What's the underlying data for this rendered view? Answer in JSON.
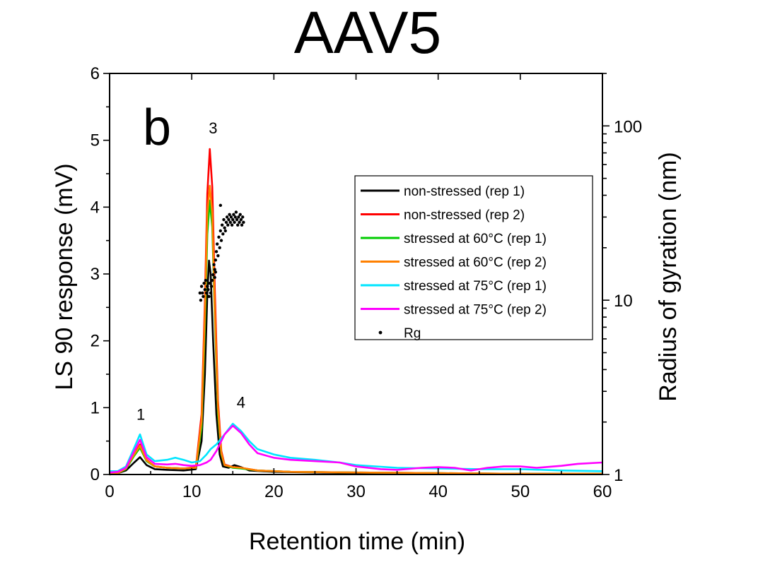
{
  "chart_data": {
    "type": "line",
    "title": "AAV5",
    "panel_label": "b",
    "xlabel": "Retention time (min)",
    "ylabel": "LS 90 response (mV)",
    "y2label": "Radius of gyration (nm)",
    "xlim": [
      0,
      60
    ],
    "ylim": [
      0,
      6
    ],
    "y2lim": [
      1,
      200
    ],
    "y2scale": "log",
    "xticks": [
      0,
      10,
      20,
      30,
      40,
      50,
      60
    ],
    "yticks": [
      0,
      1,
      2,
      3,
      4,
      5,
      6
    ],
    "y2ticks": [
      1,
      10,
      100
    ],
    "legend_position": "right",
    "peak_labels": [
      {
        "text": "1",
        "x": 3.8,
        "y": 0.82
      },
      {
        "text": "3",
        "x": 12.6,
        "y": 5.1
      },
      {
        "text": "4",
        "x": 16.0,
        "y": 1.0
      }
    ],
    "series": [
      {
        "name": "non-stressed (rep 1)",
        "color": "#000000",
        "points": [
          [
            0,
            0
          ],
          [
            1,
            0.02
          ],
          [
            2,
            0.06
          ],
          [
            3,
            0.18
          ],
          [
            3.7,
            0.26
          ],
          [
            4.5,
            0.14
          ],
          [
            5.5,
            0.08
          ],
          [
            7,
            0.07
          ],
          [
            9,
            0.06
          ],
          [
            10.5,
            0.08
          ],
          [
            11.2,
            0.5
          ],
          [
            11.6,
            1.5
          ],
          [
            11.9,
            2.7
          ],
          [
            12.1,
            3.2
          ],
          [
            12.3,
            3.0
          ],
          [
            12.6,
            2.0
          ],
          [
            13.0,
            0.9
          ],
          [
            13.4,
            0.3
          ],
          [
            13.8,
            0.12
          ],
          [
            14.5,
            0.1
          ],
          [
            15.2,
            0.14
          ],
          [
            16,
            0.11
          ],
          [
            17,
            0.06
          ],
          [
            20,
            0.04
          ],
          [
            25,
            0.03
          ],
          [
            30,
            0.02
          ],
          [
            40,
            0.01
          ],
          [
            50,
            0.01
          ],
          [
            60,
            0.01
          ]
        ]
      },
      {
        "name": "non-stressed (rep 2)",
        "color": "#ff0000",
        "points": [
          [
            0,
            0
          ],
          [
            1,
            0.03
          ],
          [
            2,
            0.1
          ],
          [
            3,
            0.3
          ],
          [
            3.7,
            0.45
          ],
          [
            4.5,
            0.22
          ],
          [
            5.5,
            0.12
          ],
          [
            7,
            0.1
          ],
          [
            9,
            0.09
          ],
          [
            10.5,
            0.11
          ],
          [
            11.2,
            0.9
          ],
          [
            11.6,
            2.6
          ],
          [
            11.9,
            4.2
          ],
          [
            12.2,
            4.87
          ],
          [
            12.5,
            4.3
          ],
          [
            12.8,
            2.8
          ],
          [
            13.2,
            1.1
          ],
          [
            13.6,
            0.35
          ],
          [
            14.0,
            0.15
          ],
          [
            15,
            0.11
          ],
          [
            16,
            0.1
          ],
          [
            18,
            0.06
          ],
          [
            22,
            0.04
          ],
          [
            30,
            0.03
          ],
          [
            40,
            0.02
          ],
          [
            50,
            0.01
          ],
          [
            60,
            0.01
          ]
        ]
      },
      {
        "name": "stressed at 60°C (rep 1)",
        "color": "#00cc00",
        "points": [
          [
            0,
            0
          ],
          [
            1,
            0.02
          ],
          [
            2,
            0.08
          ],
          [
            3,
            0.28
          ],
          [
            3.7,
            0.4
          ],
          [
            4.5,
            0.2
          ],
          [
            5.5,
            0.12
          ],
          [
            7,
            0.1
          ],
          [
            9,
            0.09
          ],
          [
            10.5,
            0.1
          ],
          [
            11.2,
            0.7
          ],
          [
            11.6,
            2.2
          ],
          [
            11.9,
            3.6
          ],
          [
            12.2,
            4.1
          ],
          [
            12.5,
            3.7
          ],
          [
            12.8,
            2.4
          ],
          [
            13.2,
            0.9
          ],
          [
            13.6,
            0.3
          ],
          [
            14.0,
            0.14
          ],
          [
            15,
            0.1
          ],
          [
            16,
            0.09
          ],
          [
            18,
            0.06
          ],
          [
            22,
            0.04
          ],
          [
            30,
            0.03
          ],
          [
            40,
            0.02
          ],
          [
            50,
            0.01
          ],
          [
            60,
            0.01
          ]
        ]
      },
      {
        "name": "stressed at 60°C (rep 2)",
        "color": "#ff8000",
        "points": [
          [
            0,
            0
          ],
          [
            1,
            0.02
          ],
          [
            2,
            0.09
          ],
          [
            3,
            0.3
          ],
          [
            3.7,
            0.43
          ],
          [
            4.5,
            0.21
          ],
          [
            5.5,
            0.12
          ],
          [
            7,
            0.1
          ],
          [
            9,
            0.09
          ],
          [
            10.5,
            0.1
          ],
          [
            11.2,
            0.8
          ],
          [
            11.6,
            2.4
          ],
          [
            11.9,
            3.9
          ],
          [
            12.2,
            4.32
          ],
          [
            12.5,
            3.9
          ],
          [
            12.8,
            2.5
          ],
          [
            13.2,
            1.0
          ],
          [
            13.6,
            0.32
          ],
          [
            14.0,
            0.14
          ],
          [
            15,
            0.11
          ],
          [
            16,
            0.1
          ],
          [
            18,
            0.06
          ],
          [
            22,
            0.04
          ],
          [
            30,
            0.03
          ],
          [
            40,
            0.02
          ],
          [
            50,
            0.01
          ],
          [
            60,
            0.01
          ]
        ]
      },
      {
        "name": "stressed at 75°C (rep 1)",
        "color": "#00e5ff",
        "points": [
          [
            0,
            0.05
          ],
          [
            1,
            0.05
          ],
          [
            2,
            0.12
          ],
          [
            3,
            0.4
          ],
          [
            3.7,
            0.6
          ],
          [
            4.5,
            0.3
          ],
          [
            5.5,
            0.2
          ],
          [
            7,
            0.22
          ],
          [
            8,
            0.25
          ],
          [
            9,
            0.22
          ],
          [
            10,
            0.18
          ],
          [
            11,
            0.2
          ],
          [
            11.8,
            0.3
          ],
          [
            12.3,
            0.38
          ],
          [
            13,
            0.45
          ],
          [
            14,
            0.6
          ],
          [
            15,
            0.76
          ],
          [
            16,
            0.65
          ],
          [
            17,
            0.5
          ],
          [
            18,
            0.38
          ],
          [
            20,
            0.3
          ],
          [
            22,
            0.25
          ],
          [
            25,
            0.22
          ],
          [
            28,
            0.18
          ],
          [
            30,
            0.14
          ],
          [
            35,
            0.1
          ],
          [
            40,
            0.09
          ],
          [
            45,
            0.08
          ],
          [
            50,
            0.08
          ],
          [
            55,
            0.06
          ],
          [
            60,
            0.05
          ]
        ]
      },
      {
        "name": "stressed at 75°C (rep 2)",
        "color": "#ff00ff",
        "points": [
          [
            0,
            0.03
          ],
          [
            1,
            0.04
          ],
          [
            2,
            0.1
          ],
          [
            3,
            0.35
          ],
          [
            3.7,
            0.52
          ],
          [
            4.5,
            0.26
          ],
          [
            5.5,
            0.16
          ],
          [
            7,
            0.15
          ],
          [
            8,
            0.16
          ],
          [
            9,
            0.14
          ],
          [
            10,
            0.13
          ],
          [
            11,
            0.14
          ],
          [
            11.8,
            0.18
          ],
          [
            12.3,
            0.22
          ],
          [
            13,
            0.35
          ],
          [
            14,
            0.6
          ],
          [
            15,
            0.73
          ],
          [
            16,
            0.62
          ],
          [
            17,
            0.45
          ],
          [
            18,
            0.32
          ],
          [
            20,
            0.25
          ],
          [
            22,
            0.22
          ],
          [
            25,
            0.2
          ],
          [
            28,
            0.18
          ],
          [
            30,
            0.12
          ],
          [
            33,
            0.08
          ],
          [
            35,
            0.07
          ],
          [
            38,
            0.1
          ],
          [
            40,
            0.11
          ],
          [
            42,
            0.1
          ],
          [
            44,
            0.06
          ],
          [
            46,
            0.1
          ],
          [
            48,
            0.12
          ],
          [
            50,
            0.12
          ],
          [
            52,
            0.1
          ],
          [
            55,
            0.13
          ],
          [
            57,
            0.16
          ],
          [
            60,
            0.18
          ]
        ]
      },
      {
        "name": "Rg",
        "color": "#000000",
        "marker": "dot",
        "points": [
          [
            11.0,
            11
          ],
          [
            11.1,
            10
          ],
          [
            11.2,
            12
          ],
          [
            11.3,
            11
          ],
          [
            11.4,
            10.5
          ],
          [
            11.5,
            12.5
          ],
          [
            11.6,
            11.5
          ],
          [
            11.7,
            13
          ],
          [
            11.8,
            11
          ],
          [
            11.9,
            12
          ],
          [
            12.0,
            11.5
          ],
          [
            12.1,
            10.5
          ],
          [
            12.2,
            12.5
          ],
          [
            12.3,
            11
          ],
          [
            12.4,
            12
          ],
          [
            12.5,
            13
          ],
          [
            12.6,
            14
          ],
          [
            12.7,
            16
          ],
          [
            12.8,
            15
          ],
          [
            12.9,
            17
          ],
          [
            13.0,
            19
          ],
          [
            13.1,
            21
          ],
          [
            13.2,
            18
          ],
          [
            13.3,
            23
          ],
          [
            13.4,
            20
          ],
          [
            13.5,
            25
          ],
          [
            13.6,
            22
          ],
          [
            13.7,
            27
          ],
          [
            13.8,
            24
          ],
          [
            13.9,
            29
          ],
          [
            14.0,
            26
          ],
          [
            14.1,
            25
          ],
          [
            14.2,
            28
          ],
          [
            14.3,
            30
          ],
          [
            14.4,
            27
          ],
          [
            14.5,
            29
          ],
          [
            14.6,
            31
          ],
          [
            14.7,
            28
          ],
          [
            14.8,
            30
          ],
          [
            14.9,
            27
          ],
          [
            15.0,
            29
          ],
          [
            15.1,
            31
          ],
          [
            15.2,
            28
          ],
          [
            15.3,
            30
          ],
          [
            15.4,
            32
          ],
          [
            15.5,
            29
          ],
          [
            15.6,
            27
          ],
          [
            15.7,
            30
          ],
          [
            15.8,
            28
          ],
          [
            15.9,
            31
          ],
          [
            16.0,
            29
          ],
          [
            16.1,
            27
          ],
          [
            16.2,
            30
          ],
          [
            16.3,
            28
          ],
          [
            13.5,
            35
          ],
          [
            12.9,
            14.5
          ],
          [
            12.8,
            13.5
          ]
        ]
      }
    ]
  }
}
